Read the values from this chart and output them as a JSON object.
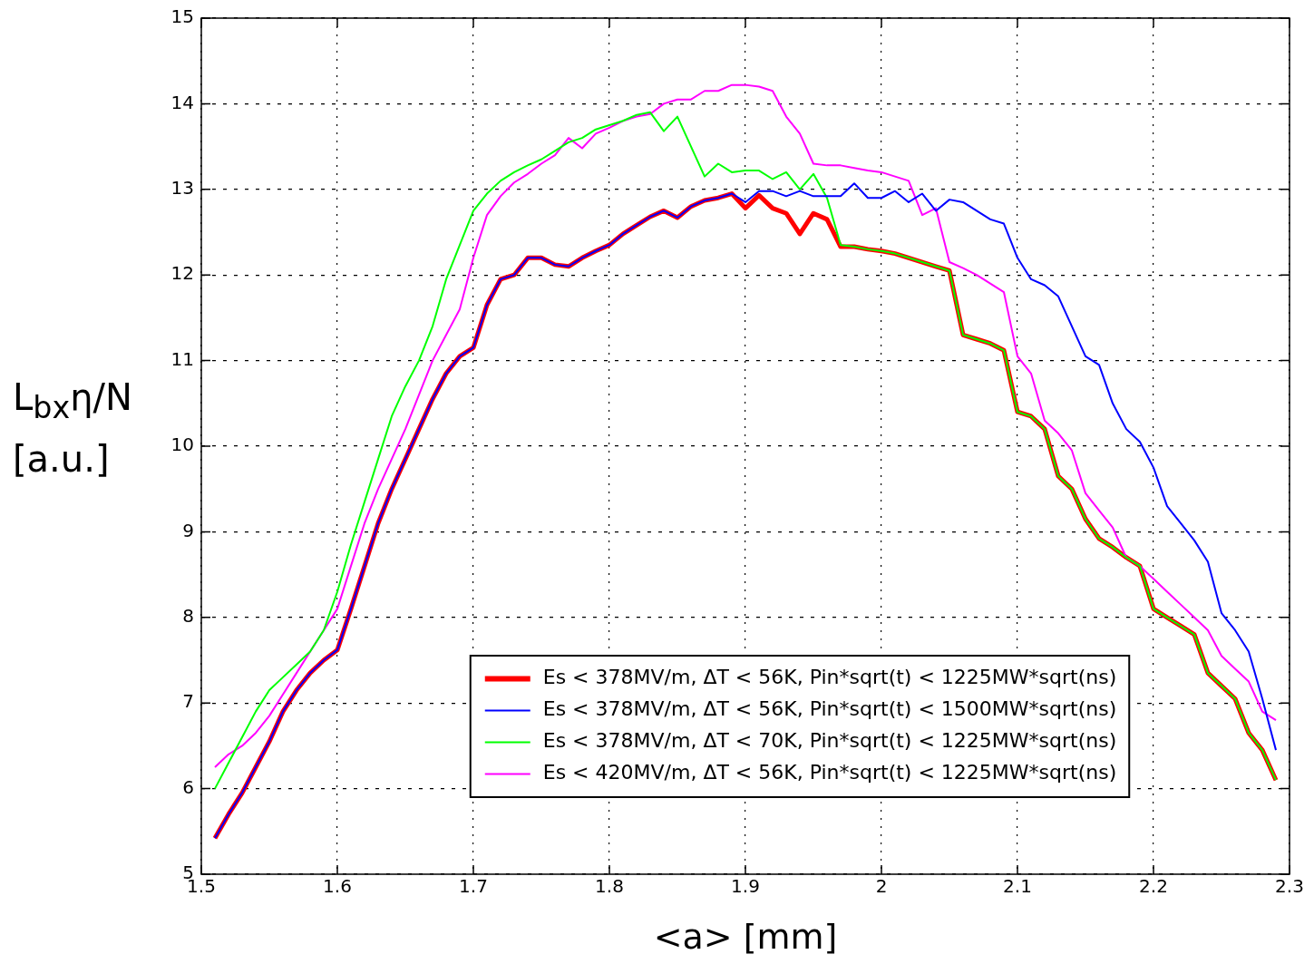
{
  "chart_data": {
    "type": "line",
    "xlabel": "<a> [mm]",
    "ylabel": "L$_{bx}$η/N [a.u.]",
    "x": [
      1.51,
      1.52,
      1.53,
      1.54,
      1.55,
      1.56,
      1.57,
      1.58,
      1.59,
      1.6,
      1.61,
      1.62,
      1.63,
      1.64,
      1.65,
      1.66,
      1.67,
      1.68,
      1.69,
      1.7,
      1.71,
      1.72,
      1.73,
      1.74,
      1.75,
      1.76,
      1.77,
      1.78,
      1.79,
      1.8,
      1.81,
      1.82,
      1.83,
      1.84,
      1.85,
      1.86,
      1.87,
      1.88,
      1.89,
      1.9,
      1.91,
      1.92,
      1.93,
      1.94,
      1.95,
      1.96,
      1.97,
      1.98,
      1.99,
      2.0,
      2.01,
      2.02,
      2.03,
      2.04,
      2.05,
      2.06,
      2.07,
      2.08,
      2.09,
      2.1,
      2.11,
      2.12,
      2.13,
      2.14,
      2.15,
      2.16,
      2.17,
      2.18,
      2.19,
      2.2,
      2.21,
      2.22,
      2.23,
      2.24,
      2.25,
      2.26,
      2.27,
      2.28,
      2.29
    ],
    "series": [
      {
        "name": "Es < 378MV/m, ΔT < 56K, Pin*sqrt(t) < 1225MW*sqrt(ns)",
        "color": "#ff0000",
        "values": [
          5.42,
          5.7,
          5.95,
          6.25,
          6.55,
          6.9,
          7.15,
          7.35,
          7.5,
          7.62,
          8.1,
          8.6,
          9.1,
          9.5,
          9.85,
          10.2,
          10.55,
          10.85,
          11.05,
          11.15,
          11.65,
          11.95,
          12.0,
          12.2,
          12.2,
          12.12,
          12.1,
          12.2,
          12.28,
          12.35,
          12.48,
          12.58,
          12.68,
          12.75,
          12.67,
          12.8,
          12.87,
          12.9,
          12.95,
          12.78,
          12.93,
          12.78,
          12.72,
          12.48,
          12.72,
          12.65,
          12.33,
          12.33,
          12.3,
          12.28,
          12.25,
          12.2,
          12.15,
          12.1,
          12.05,
          11.3,
          11.25,
          11.2,
          11.12,
          10.4,
          10.35,
          10.2,
          9.65,
          9.5,
          9.15,
          8.92,
          8.82,
          8.7,
          8.6,
          8.1,
          8.0,
          7.9,
          7.8,
          7.35,
          7.2,
          7.05,
          6.65,
          6.45,
          6.1
        ]
      },
      {
        "name": "Es < 378MV/m, ΔT < 56K, Pin*sqrt(t) < 1500MW*sqrt(ns)",
        "color": "#0000ff",
        "values": [
          5.42,
          5.7,
          5.95,
          6.25,
          6.55,
          6.9,
          7.15,
          7.35,
          7.5,
          7.62,
          8.1,
          8.6,
          9.1,
          9.5,
          9.85,
          10.2,
          10.55,
          10.85,
          11.05,
          11.15,
          11.65,
          11.95,
          12.0,
          12.2,
          12.2,
          12.12,
          12.1,
          12.2,
          12.28,
          12.35,
          12.48,
          12.58,
          12.68,
          12.75,
          12.67,
          12.8,
          12.87,
          12.9,
          12.95,
          12.85,
          12.98,
          12.98,
          12.92,
          12.98,
          12.92,
          12.92,
          12.92,
          13.07,
          12.9,
          12.9,
          12.98,
          12.85,
          12.95,
          12.75,
          12.88,
          12.85,
          12.75,
          12.65,
          12.6,
          12.2,
          11.95,
          11.88,
          11.75,
          11.4,
          11.05,
          10.95,
          10.5,
          10.2,
          10.05,
          9.75,
          9.3,
          9.1,
          8.9,
          8.65,
          8.05,
          7.85,
          7.6,
          7.05,
          6.45
        ]
      },
      {
        "name": "Es < 378MV/m, ΔT < 70K, Pin*sqrt(t) < 1225MW*sqrt(ns)",
        "color": "#00ff00",
        "values": [
          6.0,
          6.3,
          6.6,
          6.9,
          7.15,
          7.3,
          7.45,
          7.6,
          7.85,
          8.3,
          8.85,
          9.35,
          9.85,
          10.35,
          10.7,
          11.0,
          11.4,
          11.95,
          12.35,
          12.75,
          12.95,
          13.1,
          13.2,
          13.28,
          13.35,
          13.45,
          13.55,
          13.6,
          13.7,
          13.75,
          13.8,
          13.87,
          13.9,
          13.68,
          13.85,
          13.5,
          13.15,
          13.3,
          13.2,
          13.22,
          13.22,
          13.12,
          13.2,
          13.0,
          13.18,
          12.9,
          12.35,
          12.33,
          12.3,
          12.28,
          12.25,
          12.2,
          12.15,
          12.1,
          12.05,
          11.3,
          11.25,
          11.2,
          11.12,
          10.4,
          10.35,
          10.2,
          9.65,
          9.5,
          9.15,
          8.92,
          8.82,
          8.7,
          8.6,
          8.1,
          8.0,
          7.9,
          7.8,
          7.35,
          7.2,
          7.05,
          6.65,
          6.45,
          6.1
        ]
      },
      {
        "name": "Es < 420MV/m, ΔT < 56K, Pin*sqrt(t) < 1225MW*sqrt(ns)",
        "color": "#ff00ff",
        "values": [
          6.25,
          6.4,
          6.5,
          6.65,
          6.85,
          7.1,
          7.35,
          7.6,
          7.85,
          8.1,
          8.6,
          9.1,
          9.5,
          9.85,
          10.2,
          10.6,
          11.0,
          11.3,
          11.6,
          12.2,
          12.7,
          12.92,
          13.08,
          13.18,
          13.3,
          13.4,
          13.6,
          13.48,
          13.65,
          13.72,
          13.8,
          13.85,
          13.88,
          14.0,
          14.05,
          14.05,
          14.15,
          14.15,
          14.22,
          14.22,
          14.2,
          14.15,
          13.85,
          13.65,
          13.3,
          13.28,
          13.28,
          13.25,
          13.22,
          13.2,
          13.15,
          13.1,
          12.7,
          12.78,
          12.15,
          12.08,
          12.0,
          11.9,
          11.8,
          11.05,
          10.85,
          10.3,
          10.15,
          9.95,
          9.45,
          9.25,
          9.05,
          8.7,
          8.6,
          8.45,
          8.3,
          8.15,
          8.0,
          7.85,
          7.55,
          7.4,
          7.25,
          6.9,
          6.8
        ]
      }
    ],
    "xlim": [
      1.5,
      2.3
    ],
    "xticks": [
      1.5,
      1.6,
      1.7,
      1.8,
      1.9,
      2,
      2.1,
      2.2,
      2.3
    ],
    "ylim": [
      5,
      15
    ],
    "yticks": [
      5,
      6,
      7,
      8,
      9,
      10,
      11,
      12,
      13,
      14,
      15
    ],
    "grid": true,
    "legend": "bottom",
    "marker": "none",
    "line_style": "solid"
  }
}
